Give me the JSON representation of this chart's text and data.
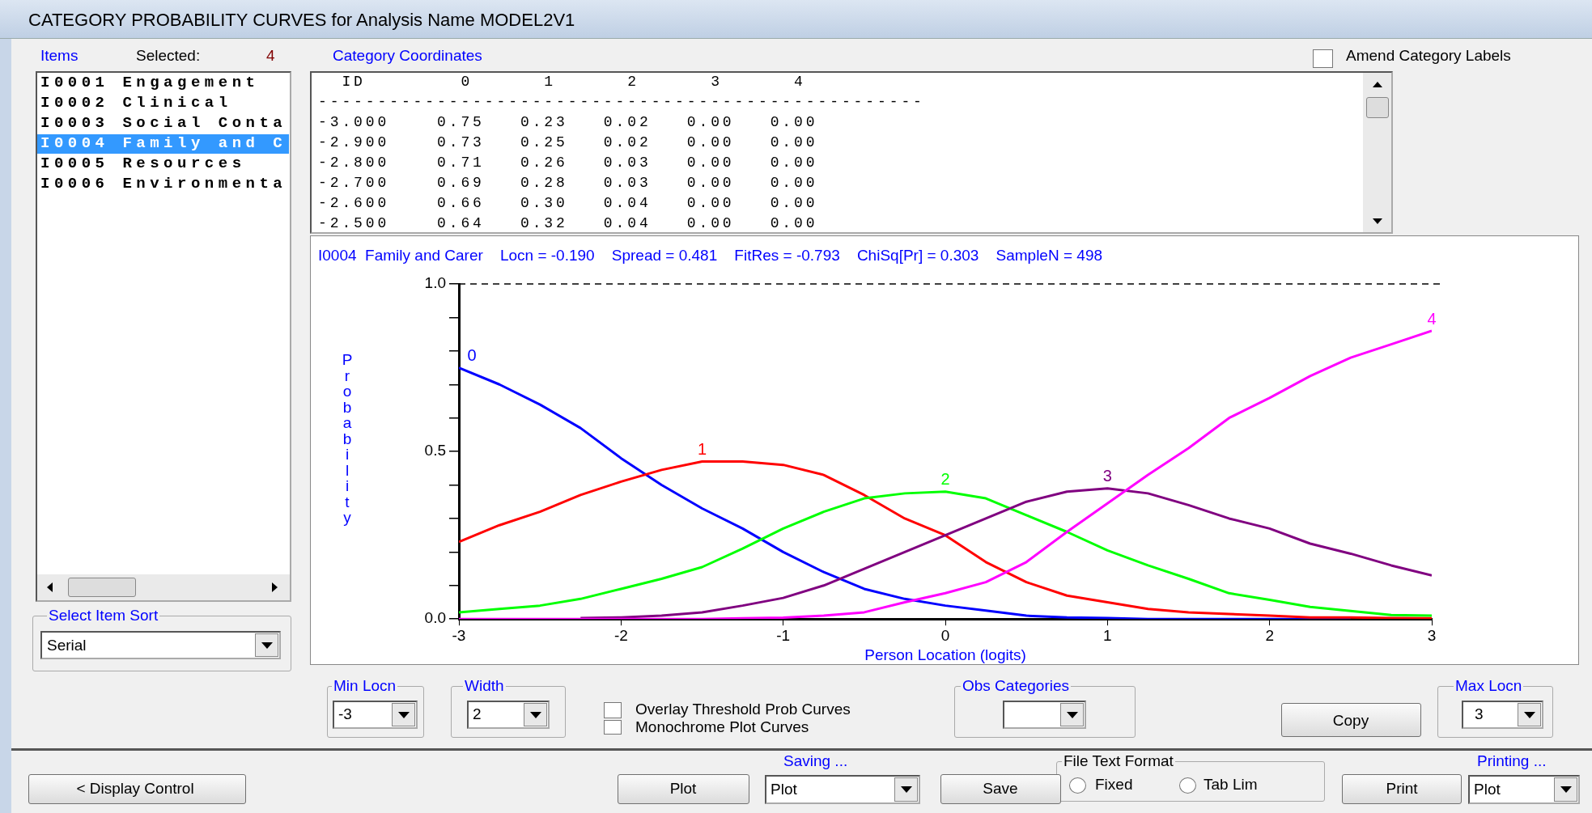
{
  "chart_data": {
    "type": "line",
    "title": "I0004  Family and Carer    Locn = -0.190    Spread = 0.481    FitRes = -0.793    ChiSq[Pr] = 0.303    SampleN = 498",
    "xlabel": "Person Location (logits)",
    "ylabel": "Probability",
    "x": [
      -3,
      -2.75,
      -2.5,
      -2.25,
      -2,
      -1.75,
      -1.5,
      -1.25,
      -1,
      -0.75,
      -0.5,
      -0.25,
      0,
      0.25,
      0.5,
      0.75,
      1,
      1.25,
      1.5,
      1.75,
      2,
      2.25,
      2.5,
      2.75,
      3
    ],
    "series": [
      {
        "name": "0",
        "color": "#0000ff",
        "values": [
          0.75,
          0.7,
          0.64,
          0.57,
          0.48,
          0.4,
          0.33,
          0.27,
          0.2,
          0.14,
          0.09,
          0.06,
          0.04,
          0.025,
          0.01,
          0.005,
          0.003,
          0,
          0,
          0,
          0,
          0,
          0,
          null,
          null
        ]
      },
      {
        "name": "1",
        "color": "#ff0000",
        "values": [
          0.23,
          0.28,
          0.32,
          0.37,
          0.41,
          0.445,
          0.47,
          0.47,
          0.46,
          0.43,
          0.37,
          0.3,
          0.25,
          0.17,
          0.11,
          0.07,
          0.05,
          0.03,
          0.02,
          0.015,
          0.01,
          0.005,
          0.005,
          0.003,
          0.002
        ]
      },
      {
        "name": "2",
        "color": "#00ff00",
        "values": [
          0.02,
          0.03,
          0.04,
          0.06,
          0.09,
          0.12,
          0.155,
          0.21,
          0.27,
          0.32,
          0.36,
          0.375,
          0.38,
          0.36,
          0.31,
          0.26,
          0.205,
          0.16,
          0.12,
          0.077,
          0.057,
          0.036,
          0.024,
          0.012,
          0.01
        ]
      },
      {
        "name": "3",
        "color": "#800080",
        "values": [
          null,
          null,
          null,
          0.003,
          0.005,
          0.01,
          0.02,
          0.04,
          0.063,
          0.1,
          0.15,
          0.2,
          0.25,
          0.3,
          0.35,
          0.38,
          0.39,
          0.375,
          0.34,
          0.3,
          0.27,
          0.225,
          0.195,
          0.16,
          0.13
        ]
      },
      {
        "name": "4",
        "color": "#ff00ff",
        "values": [
          0,
          0,
          0,
          0,
          0,
          0,
          0,
          0.002,
          0.004,
          0.01,
          0.02,
          0.05,
          0.077,
          0.11,
          0.17,
          0.26,
          0.345,
          0.43,
          0.51,
          0.6,
          0.66,
          0.725,
          0.78,
          0.82,
          0.86
        ]
      }
    ],
    "xlim": [
      -3,
      3
    ],
    "xticks": [
      -3,
      -2,
      -1,
      0,
      1,
      2,
      3
    ],
    "ylim": [
      0,
      1
    ],
    "yticks": [
      {
        "value": 0,
        "label": "0.0"
      },
      {
        "value": 0.1,
        "label": null
      },
      {
        "value": 0.2,
        "label": null
      },
      {
        "value": 0.3,
        "label": null
      },
      {
        "value": 0.4,
        "label": null
      },
      {
        "value": 0.5,
        "label": "0.5"
      },
      {
        "value": 0.6,
        "label": null
      },
      {
        "value": 0.7,
        "label": null
      },
      {
        "value": 0.8,
        "label": null
      },
      {
        "value": 0.9,
        "label": null
      },
      {
        "value": 1,
        "label": "1.0"
      }
    ],
    "ref_lines": [
      {
        "axis": "y",
        "value": 1,
        "color": "#000000",
        "line_style": "dashed"
      }
    ],
    "grid": false,
    "legend": false,
    "marker": "none",
    "line_style": "solid",
    "annotations": [
      "CATEGORY PROBABILITY CURVES for Analysis Name MODEL2V1",
      "Items",
      "Selected:",
      "4",
      "Category Coordinates",
      "Amend Category Labels",
      "I0001 Engagement",
      "I0002 Clinical",
      "I0003 Social Conta",
      "I0004 Family and C",
      "I0005 Resources",
      "I0006 Environmenta",
      "  ID        0      1      2      3      4",
      "---------------------------------------------------",
      "-3.000    0.75   0.23   0.02   0.00   0.00",
      "-2.900    0.73   0.25   0.02   0.00   0.00",
      "-2.800    0.71   0.26   0.03   0.00   0.00",
      "-2.700    0.69   0.28   0.03   0.00   0.00",
      "-2.600    0.66   0.30   0.04   0.00   0.00",
      "-2.500    0.64   0.32   0.04   0.00   0.00",
      "Select Item Sort",
      "Serial",
      "Min Locn",
      "-3",
      "Width",
      "2",
      "Overlay Threshold Prob Curves",
      "Monochrome Plot Curves",
      "Obs Categories",
      "Copy",
      "Max Locn",
      "3",
      "< Display Control",
      "Saving ...",
      "Plot",
      "Plot",
      "Save",
      "File Text Format",
      "Fixed",
      "Tab Lim",
      "Printing ...",
      "Print",
      "Plot"
    ]
  }
}
